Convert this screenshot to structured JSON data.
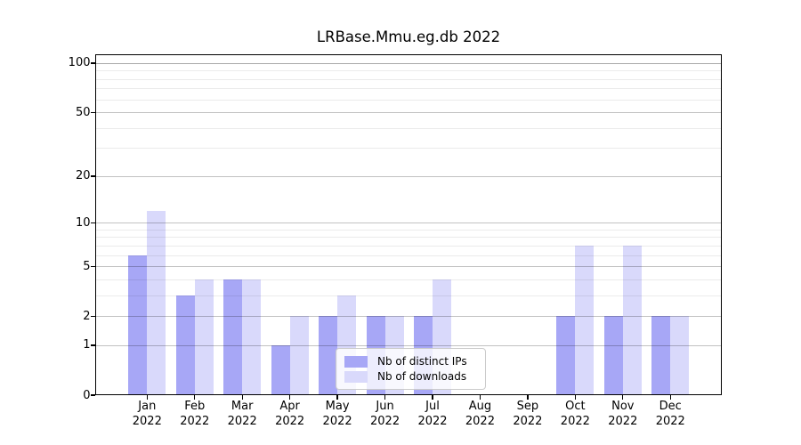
{
  "chart_data": {
    "type": "bar",
    "title": "LRBase.Mmu.eg.db 2022",
    "categories": [
      "Jan",
      "Feb",
      "Mar",
      "Apr",
      "May",
      "Jun",
      "Jul",
      "Aug",
      "Sep",
      "Oct",
      "Nov",
      "Dec"
    ],
    "category_year": "2022",
    "series": [
      {
        "name": "Nb of distinct IPs",
        "color": "#a7a7f6",
        "values": [
          6,
          3,
          4,
          1,
          2,
          2,
          2,
          0,
          0,
          2,
          2,
          2
        ]
      },
      {
        "name": "Nb of downloads",
        "color": "#d9d9fb",
        "values": [
          12,
          4,
          4,
          2,
          3,
          2,
          4,
          0,
          0,
          7,
          7,
          2
        ]
      }
    ],
    "yaxis": {
      "scale": "log1p",
      "ticks": [
        0,
        1,
        2,
        5,
        10,
        20,
        50,
        100
      ],
      "minor_gridlines": [
        3,
        4,
        6,
        7,
        8,
        9,
        30,
        40,
        60,
        70,
        80,
        90
      ],
      "ymax": 114
    },
    "grid": "on",
    "legend": {
      "position": "lower-center-left"
    },
    "colors": {
      "axis": "#000000",
      "background": "#ffffff",
      "gridline_major": "#d0d0d0",
      "gridline_minor": "#ebebeb"
    }
  }
}
